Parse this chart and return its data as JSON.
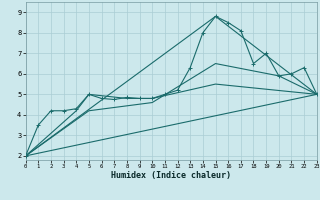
{
  "xlabel": "Humidex (Indice chaleur)",
  "bg_color": "#cce8ec",
  "grid_color": "#aacdd4",
  "line_color": "#1a6b6b",
  "xlim": [
    0,
    23
  ],
  "ylim": [
    1.8,
    9.5
  ],
  "xticks": [
    0,
    1,
    2,
    3,
    4,
    5,
    6,
    7,
    8,
    9,
    10,
    11,
    12,
    13,
    14,
    15,
    16,
    17,
    18,
    19,
    20,
    21,
    22,
    23
  ],
  "yticks": [
    2,
    3,
    4,
    5,
    6,
    7,
    8,
    9
  ],
  "main_series": [
    [
      0,
      2.0
    ],
    [
      1,
      3.5
    ],
    [
      2,
      4.2
    ],
    [
      3,
      4.2
    ],
    [
      4,
      4.3
    ],
    [
      5,
      5.0
    ],
    [
      6,
      4.8
    ],
    [
      7,
      4.75
    ],
    [
      8,
      4.85
    ],
    [
      9,
      4.8
    ],
    [
      10,
      4.8
    ],
    [
      11,
      5.0
    ],
    [
      12,
      5.2
    ],
    [
      13,
      6.3
    ],
    [
      14,
      8.0
    ],
    [
      15,
      8.8
    ],
    [
      16,
      8.5
    ],
    [
      17,
      8.1
    ],
    [
      18,
      6.5
    ],
    [
      19,
      7.0
    ],
    [
      20,
      5.9
    ],
    [
      21,
      6.0
    ],
    [
      22,
      6.3
    ],
    [
      23,
      5.0
    ]
  ],
  "line_straight": [
    [
      0,
      2.0
    ],
    [
      23,
      5.0
    ]
  ],
  "line_triangle": [
    [
      0,
      2.0
    ],
    [
      15,
      8.8
    ],
    [
      23,
      5.0
    ]
  ],
  "line_mid1": [
    [
      0,
      2.0
    ],
    [
      5,
      4.2
    ],
    [
      10,
      4.6
    ],
    [
      15,
      6.5
    ],
    [
      20,
      5.9
    ],
    [
      23,
      5.0
    ]
  ],
  "line_mid2": [
    [
      0,
      2.0
    ],
    [
      4,
      4.2
    ],
    [
      5,
      5.0
    ],
    [
      8,
      4.8
    ],
    [
      10,
      4.8
    ],
    [
      15,
      5.5
    ],
    [
      23,
      5.0
    ]
  ]
}
